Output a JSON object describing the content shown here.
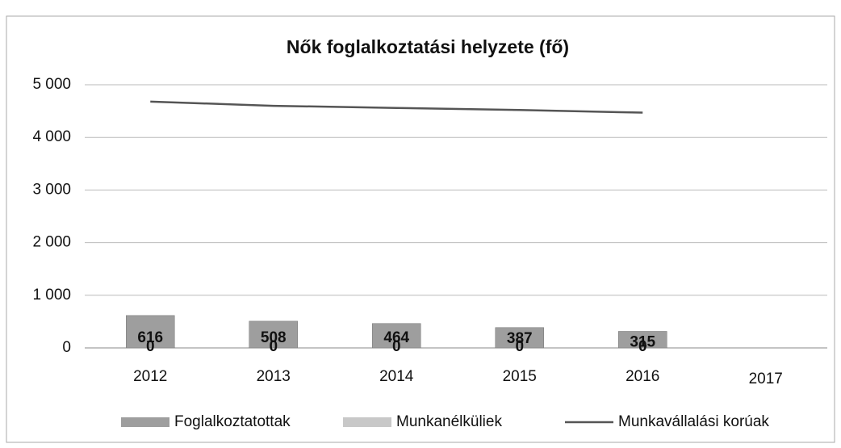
{
  "chart_data": {
    "type": "bar",
    "title": "Nők foglalkoztatási helyzete (fő)",
    "categories": [
      "2012",
      "2013",
      "2014",
      "2015",
      "2016",
      "2017"
    ],
    "series": [
      {
        "name": "Foglalkoztatottak",
        "type": "bar",
        "color": "#9e9e9e",
        "values": [
          616,
          508,
          464,
          387,
          315,
          null
        ]
      },
      {
        "name": "Munkanélküliek",
        "type": "bar",
        "color": "#c8c8c8",
        "values": [
          0,
          0,
          0,
          0,
          0,
          null
        ]
      },
      {
        "name": "Munkavállalási korúak",
        "type": "line",
        "color": "#555555",
        "values": [
          4680,
          4600,
          4560,
          4520,
          4470,
          null
        ]
      }
    ],
    "ylim": [
      0,
      5000
    ],
    "yticks": [
      0,
      {
        "value": 1000,
        "label": "1 000"
      },
      {
        "value": 2000,
        "label": "2 000"
      },
      {
        "value": 3000,
        "label": "3 000"
      },
      {
        "value": 4000,
        "label": "4 000"
      },
      {
        "value": 5000,
        "label": "5 000"
      }
    ],
    "grid": true,
    "legend": "bottom"
  }
}
